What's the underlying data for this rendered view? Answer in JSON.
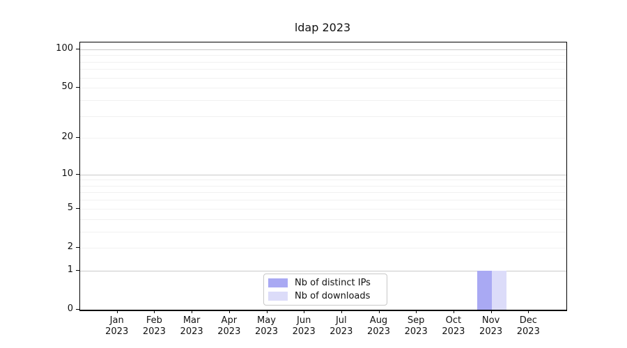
{
  "chart_data": {
    "type": "bar",
    "title": "ldap 2023",
    "categories": [
      "Jan 2023",
      "Feb 2023",
      "Mar 2023",
      "Apr 2023",
      "May 2023",
      "Jun 2023",
      "Jul 2023",
      "Aug 2023",
      "Sep 2023",
      "Oct 2023",
      "Nov 2023",
      "Dec 2023"
    ],
    "series": [
      {
        "name": "Nb of distinct IPs",
        "color": "#a9a9f3",
        "values": [
          0,
          0,
          0,
          0,
          0,
          0,
          0,
          0,
          0,
          0,
          1,
          0
        ]
      },
      {
        "name": "Nb of downloads",
        "color": "#dcdcf9",
        "values": [
          0,
          0,
          0,
          0,
          0,
          0,
          0,
          0,
          0,
          0,
          1,
          0
        ]
      }
    ],
    "yscale": "log1p",
    "yticks": [
      0,
      1,
      2,
      5,
      10,
      20,
      50,
      100
    ],
    "major_gridlines": [
      1,
      10,
      100
    ],
    "minor_gridlines": [
      2,
      3,
      4,
      5,
      6,
      7,
      8,
      9,
      20,
      30,
      40,
      50,
      60,
      70,
      80,
      90
    ],
    "ylim": [
      0,
      113
    ],
    "xlim": [
      -1,
      12
    ],
    "grid": true,
    "legend_position": "lower center",
    "colors": {
      "bar_distinct_ips": "#a9a9f3",
      "bar_downloads": "#dcdcf9",
      "major_grid": "#c9c9c9",
      "minor_grid": "#f1f1f1",
      "axis": "#000000",
      "text": "#111111",
      "legend_border": "#c8c8c8"
    }
  }
}
